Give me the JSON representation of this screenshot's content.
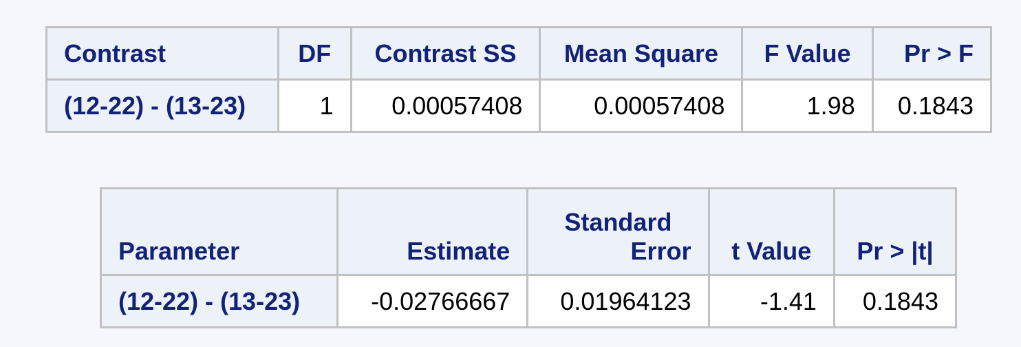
{
  "contrast_table": {
    "headers": [
      "Contrast",
      "DF",
      "Contrast SS",
      "Mean Square",
      "F Value",
      "Pr > F"
    ],
    "row": {
      "contrast": "(12-22) - (13-23)",
      "df": "1",
      "contrast_ss": "0.00057408",
      "mean_square": "0.00057408",
      "f_value": "1.98",
      "pr_f": "0.1843"
    }
  },
  "estimate_table": {
    "headers": {
      "parameter": "Parameter",
      "estimate": "Estimate",
      "std_error_line1": "Standard",
      "std_error_line2": "Error",
      "t_value": "t Value",
      "pr_t": "Pr > |t|"
    },
    "row": {
      "parameter": "(12-22) - (13-23)",
      "estimate": "-0.02766667",
      "std_error": "0.01964123",
      "t_value": "-1.41",
      "pr_t": "0.1843"
    }
  }
}
